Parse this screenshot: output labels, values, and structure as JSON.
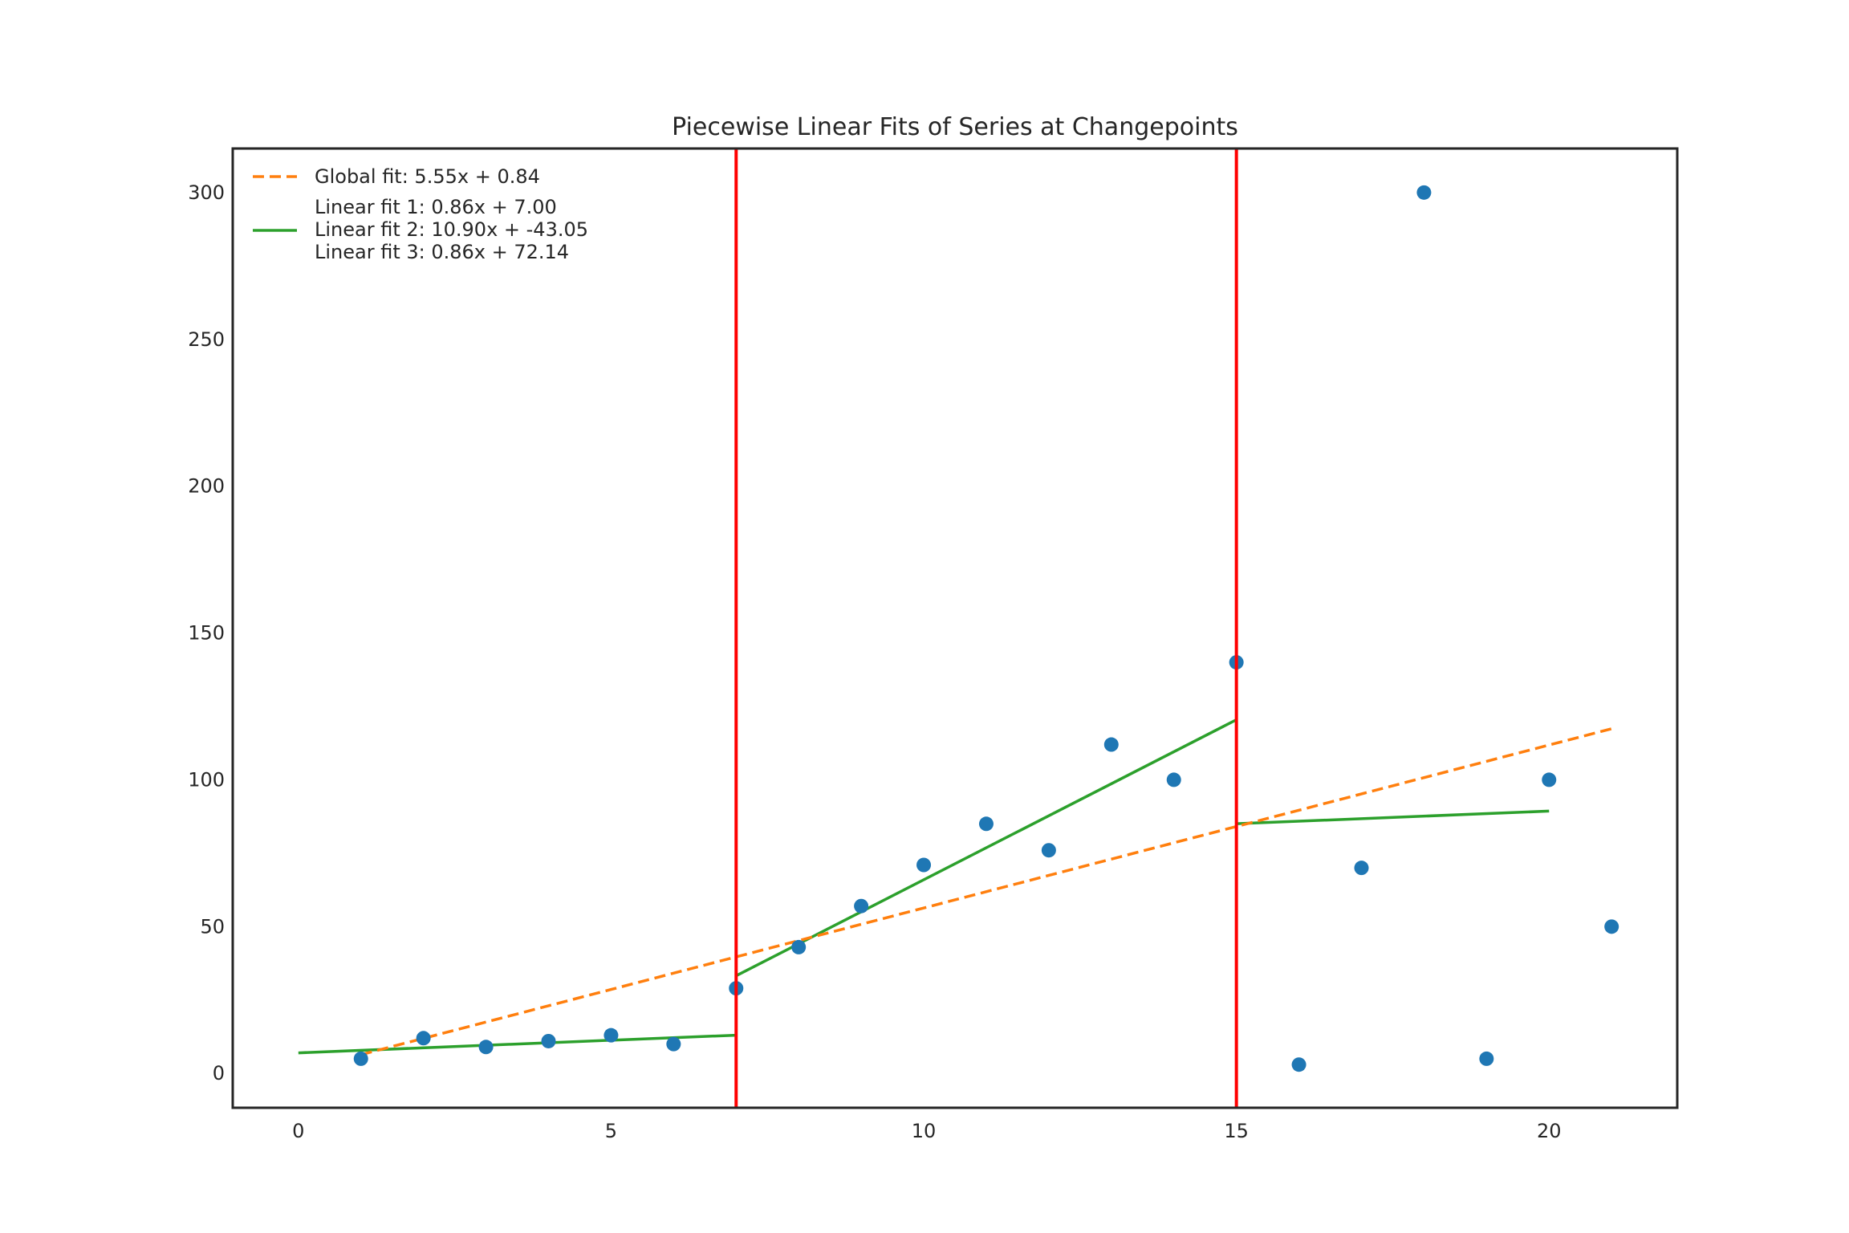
{
  "chart_data": {
    "type": "scatter",
    "title": "Piecewise Linear Fits of Series at Changepoints",
    "xlabel": "",
    "ylabel": "",
    "xlim": [
      -1.05,
      22.05
    ],
    "ylim": [
      -11.7,
      315.0
    ],
    "x_ticks": [
      0,
      5,
      10,
      15,
      20
    ],
    "y_ticks": [
      0,
      50,
      100,
      150,
      200,
      250,
      300
    ],
    "grid": false,
    "legend_position": "top-left",
    "points": {
      "x": [
        1,
        2,
        3,
        4,
        5,
        6,
        7,
        8,
        9,
        10,
        11,
        12,
        13,
        14,
        15,
        16,
        17,
        18,
        19,
        20,
        21
      ],
      "y": [
        5,
        12,
        9,
        11,
        13,
        10,
        29,
        43,
        57,
        71,
        85,
        76,
        112,
        100,
        140,
        3,
        70,
        300,
        5,
        100,
        50
      ],
      "color": "#1f77b4"
    },
    "changepoints": {
      "x": [
        7,
        15
      ],
      "color": "#ff0000"
    },
    "global_fit": {
      "label": "Global fit:  5.55x +  0.84",
      "slope": 5.55,
      "intercept": 0.84,
      "x_range": [
        1,
        21
      ],
      "color": "#ff7f0e",
      "style": "dashed"
    },
    "segment_fits": {
      "labels": [
        "Linear fit 1:  0.86x +  7.00",
        "Linear fit 2:  10.90x + -43.05",
        "Linear fit 3:  0.86x +  72.14"
      ],
      "color": "#2ca02c",
      "style": "solid",
      "segments": [
        {
          "slope": 0.86,
          "intercept": 7.0,
          "x_range": [
            0,
            7
          ]
        },
        {
          "slope": 10.9,
          "intercept": -43.05,
          "x_range": [
            7,
            15
          ]
        },
        {
          "slope": 0.86,
          "intercept": 72.14,
          "x_range": [
            15,
            20
          ]
        }
      ]
    }
  }
}
